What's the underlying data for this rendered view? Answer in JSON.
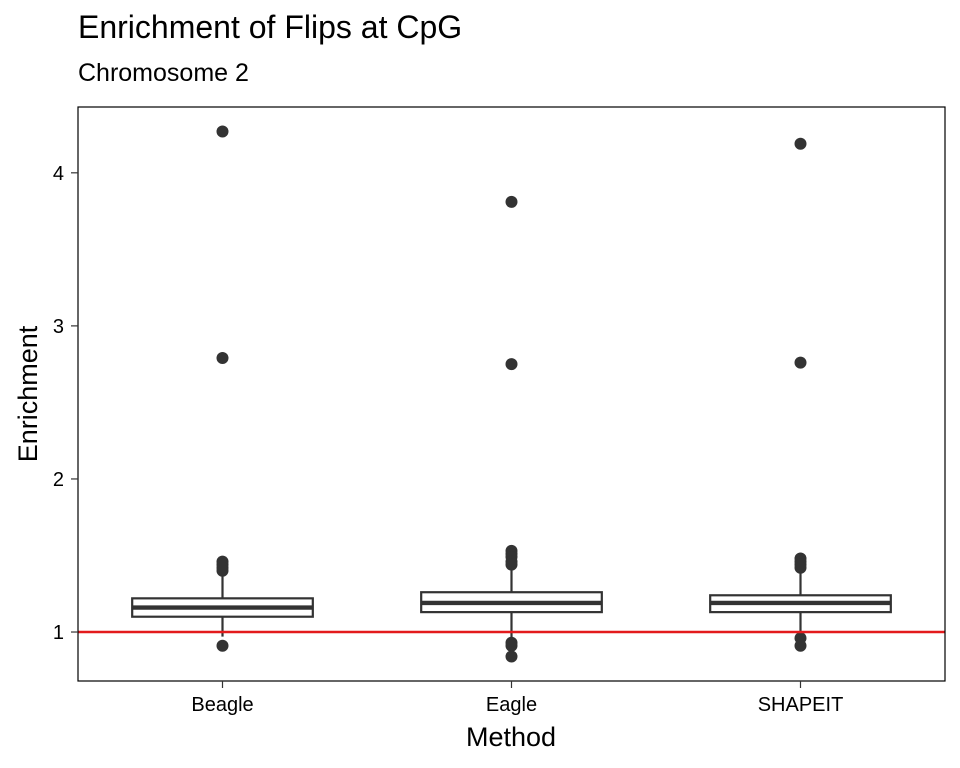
{
  "chart_data": {
    "type": "boxplot",
    "title": "Enrichment of Flips at CpG",
    "subtitle": "Chromosome 2",
    "xlabel": "Method",
    "ylabel": "Enrichment",
    "categories": [
      "Beagle",
      "Eagle",
      "SHAPEIT"
    ],
    "ylim": [
      0.68,
      4.43
    ],
    "yticks": [
      1,
      2,
      3,
      4
    ],
    "ytick_labels": [
      "1",
      "2",
      "3",
      "4"
    ],
    "grid": false,
    "boxes": [
      {
        "category": "Beagle",
        "whisker_low": 0.97,
        "q1": 1.1,
        "median": 1.16,
        "q3": 1.22,
        "whisker_high": 1.38,
        "outliers": [
          4.27,
          2.79,
          1.46,
          1.44,
          1.42,
          1.4,
          0.91
        ]
      },
      {
        "category": "Eagle",
        "whisker_low": 0.96,
        "q1": 1.13,
        "median": 1.19,
        "q3": 1.26,
        "whisker_high": 1.43,
        "outliers": [
          3.81,
          2.75,
          1.53,
          1.51,
          1.49,
          1.46,
          1.44,
          0.93,
          0.91,
          0.84
        ]
      },
      {
        "category": "SHAPEIT",
        "whisker_low": 0.98,
        "q1": 1.13,
        "median": 1.19,
        "q3": 1.24,
        "whisker_high": 1.4,
        "outliers": [
          4.19,
          2.76,
          1.48,
          1.46,
          1.44,
          1.42,
          0.96,
          0.91
        ]
      }
    ],
    "reference_line": {
      "y": 1,
      "color": "#e31a1c"
    },
    "box_color": "#333333"
  }
}
